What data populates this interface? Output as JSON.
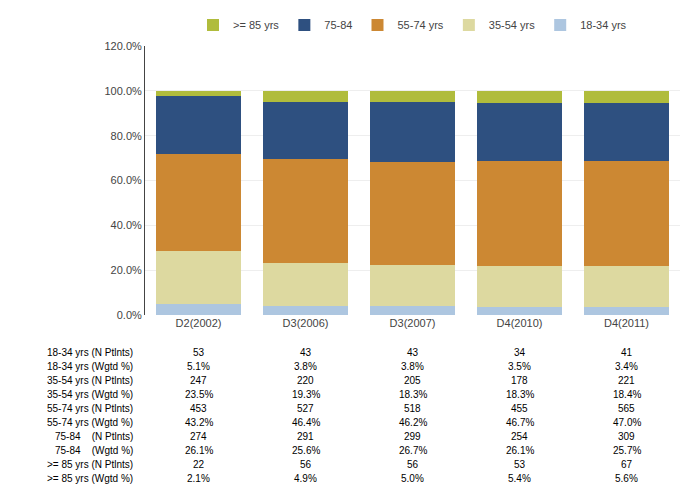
{
  "chart_data": {
    "type": "bar",
    "stacked": true,
    "categories": [
      "D2(2002)",
      "D3(2006)",
      "D3(2007)",
      "D4(2010)",
      "D4(2011)"
    ],
    "series": [
      {
        "name": "18-34 yrs",
        "color": "#adc6e0",
        "values": [
          5.1,
          3.8,
          3.8,
          3.5,
          3.4
        ]
      },
      {
        "name": "35-54 yrs",
        "color": "#ddd9a0",
        "values": [
          23.5,
          19.3,
          18.3,
          18.3,
          18.4
        ]
      },
      {
        "name": "55-74 yrs",
        "color": "#cc8833",
        "values": [
          43.2,
          46.4,
          46.2,
          46.7,
          47.0
        ]
      },
      {
        "name": "75-84",
        "color": "#2e5080",
        "values": [
          26.1,
          25.6,
          26.7,
          26.1,
          25.7
        ]
      },
      {
        "name": ">= 85 yrs",
        "color": "#b0bc3c",
        "values": [
          2.1,
          4.9,
          5.0,
          5.4,
          5.6
        ]
      }
    ],
    "ylim": [
      0,
      120
    ],
    "yticks": [
      {
        "value": 0,
        "label": "0.0%"
      },
      {
        "value": 20,
        "label": "20.0%"
      },
      {
        "value": 40,
        "label": "40.0%"
      },
      {
        "value": 60,
        "label": "60.0%"
      },
      {
        "value": 80,
        "label": "80.0%"
      },
      {
        "value": 100,
        "label": "100.0%"
      },
      {
        "value": 120,
        "label": "120.0%"
      }
    ],
    "grid": true,
    "legend": "top",
    "table": [
      {
        "label": "18-34 yrs (N Ptlnts)",
        "values": [
          "53",
          "43",
          "43",
          "34",
          "41"
        ]
      },
      {
        "label": "18-34 yrs (Wgtd %)",
        "values": [
          "5.1%",
          "3.8%",
          "3.8%",
          "3.5%",
          "3.4%"
        ]
      },
      {
        "label": "35-54 yrs (N Ptlnts)",
        "values": [
          "247",
          "220",
          "205",
          "178",
          "221"
        ]
      },
      {
        "label": "35-54 yrs (Wgtd %)",
        "values": [
          "23.5%",
          "19.3%",
          "18.3%",
          "18.3%",
          "18.4%"
        ]
      },
      {
        "label": "55-74 yrs (N Ptlnts)",
        "values": [
          "453",
          "527",
          "518",
          "455",
          "565"
        ]
      },
      {
        "label": "55-74 yrs (Wgtd %)",
        "values": [
          "43.2%",
          "46.4%",
          "46.2%",
          "46.7%",
          "47.0%"
        ]
      },
      {
        "label": "75-84    (N Ptlnts)",
        "values": [
          "274",
          "291",
          "299",
          "254",
          "309"
        ]
      },
      {
        "label": "75-84    (Wgtd %)",
        "values": [
          "26.1%",
          "25.6%",
          "26.7%",
          "26.1%",
          "25.7%"
        ]
      },
      {
        "label": ">= 85 yrs (N Ptlnts)",
        "values": [
          "22",
          "56",
          "56",
          "53",
          "67"
        ]
      },
      {
        "label": ">= 85 yrs (Wgtd %)",
        "values": [
          "2.1%",
          "4.9%",
          "5.0%",
          "5.4%",
          "5.6%"
        ]
      }
    ]
  }
}
